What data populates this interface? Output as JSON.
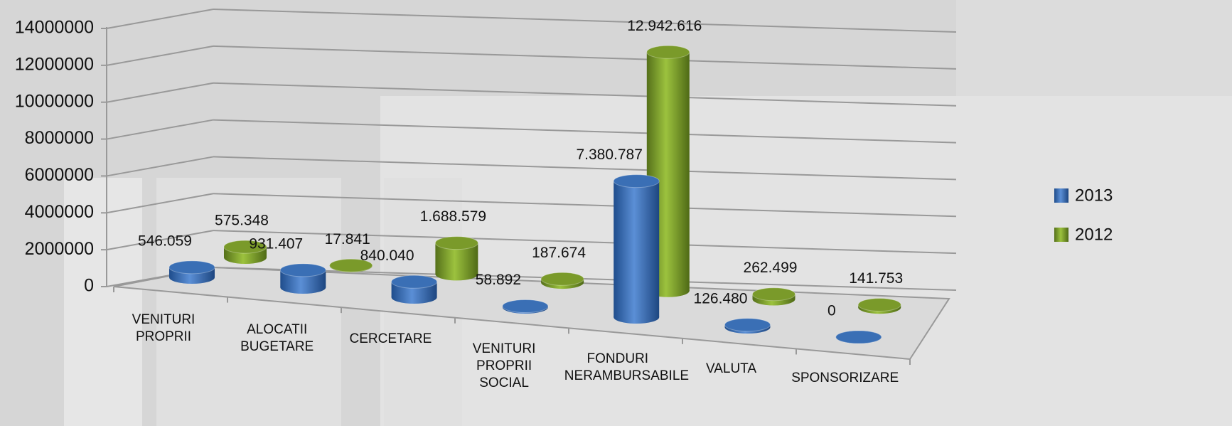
{
  "chart_data": {
    "type": "bar",
    "categories": [
      "VENITURI PROPRII",
      "ALOCATII BUGETARE",
      "CERCETARE",
      "VENITURI PROPRII SOCIAL",
      "FONDURI NERAMBURSABILE",
      "VALUTA",
      "SPONSORIZARE"
    ],
    "series": [
      {
        "name": "2013",
        "color": "#3a6fb5",
        "values": [
          546059,
          931407,
          840040,
          58892,
          7380787,
          126480,
          0
        ],
        "value_labels": [
          "546.059",
          "931.407",
          "840.040",
          "58.892",
          "7.380.787",
          "126.480",
          "0"
        ]
      },
      {
        "name": "2012",
        "color": "#7a9a2a",
        "values": [
          575348,
          17841,
          1688579,
          187674,
          12942616,
          262499,
          141753
        ],
        "value_labels": [
          "575.348",
          "17.841",
          "1.688.579",
          "187.674",
          "12.942.616",
          "262.499",
          "141.753"
        ]
      }
    ],
    "ylim": [
      0,
      14000000
    ],
    "yticks": [
      0,
      2000000,
      4000000,
      6000000,
      8000000,
      10000000,
      12000000,
      14000000
    ],
    "grid": true,
    "legend": "right"
  }
}
